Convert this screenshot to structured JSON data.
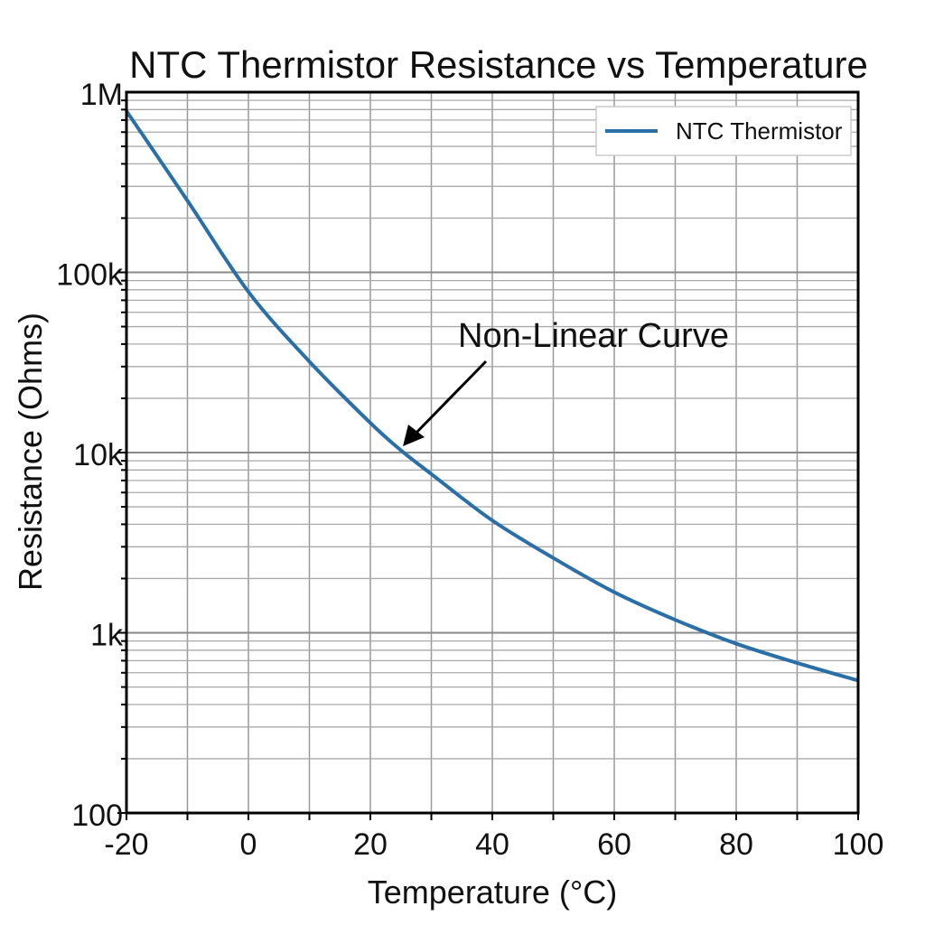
{
  "chart_data": {
    "type": "line",
    "title": "NTC Thermistor Resistance vs Temperature",
    "xlabel": "Temperature (°C)",
    "ylabel": "Resistance (Ohms)",
    "xlim": [
      -20,
      100
    ],
    "ylim": [
      100,
      1000000
    ],
    "yscale": "log",
    "grid": true,
    "x_ticks": [
      -20,
      0,
      20,
      40,
      60,
      80,
      100
    ],
    "x_tick_labels": [
      "-20",
      "0",
      "20",
      "40",
      "60",
      "80",
      "100"
    ],
    "y_ticks": [
      100,
      1000,
      10000,
      100000,
      1000000
    ],
    "y_tick_labels": [
      "100",
      "1k",
      "10k",
      "100k",
      "1M"
    ],
    "legend_placement": "top-right",
    "series": [
      {
        "name": "NTC Thermistor",
        "color": "#2a6fa8",
        "x": [
          -20,
          -10,
          0,
          10,
          20,
          25,
          30,
          40,
          50,
          60,
          70,
          80,
          90,
          100
        ],
        "y": [
          785000,
          250000,
          78000,
          32000,
          14600,
          10300,
          7600,
          4200,
          2600,
          1680,
          1180,
          870,
          680,
          543
        ]
      }
    ],
    "annotations": [
      {
        "text": "Non-Linear Curve",
        "arrow_to": {
          "x": 25,
          "y": 10000
        }
      }
    ]
  }
}
